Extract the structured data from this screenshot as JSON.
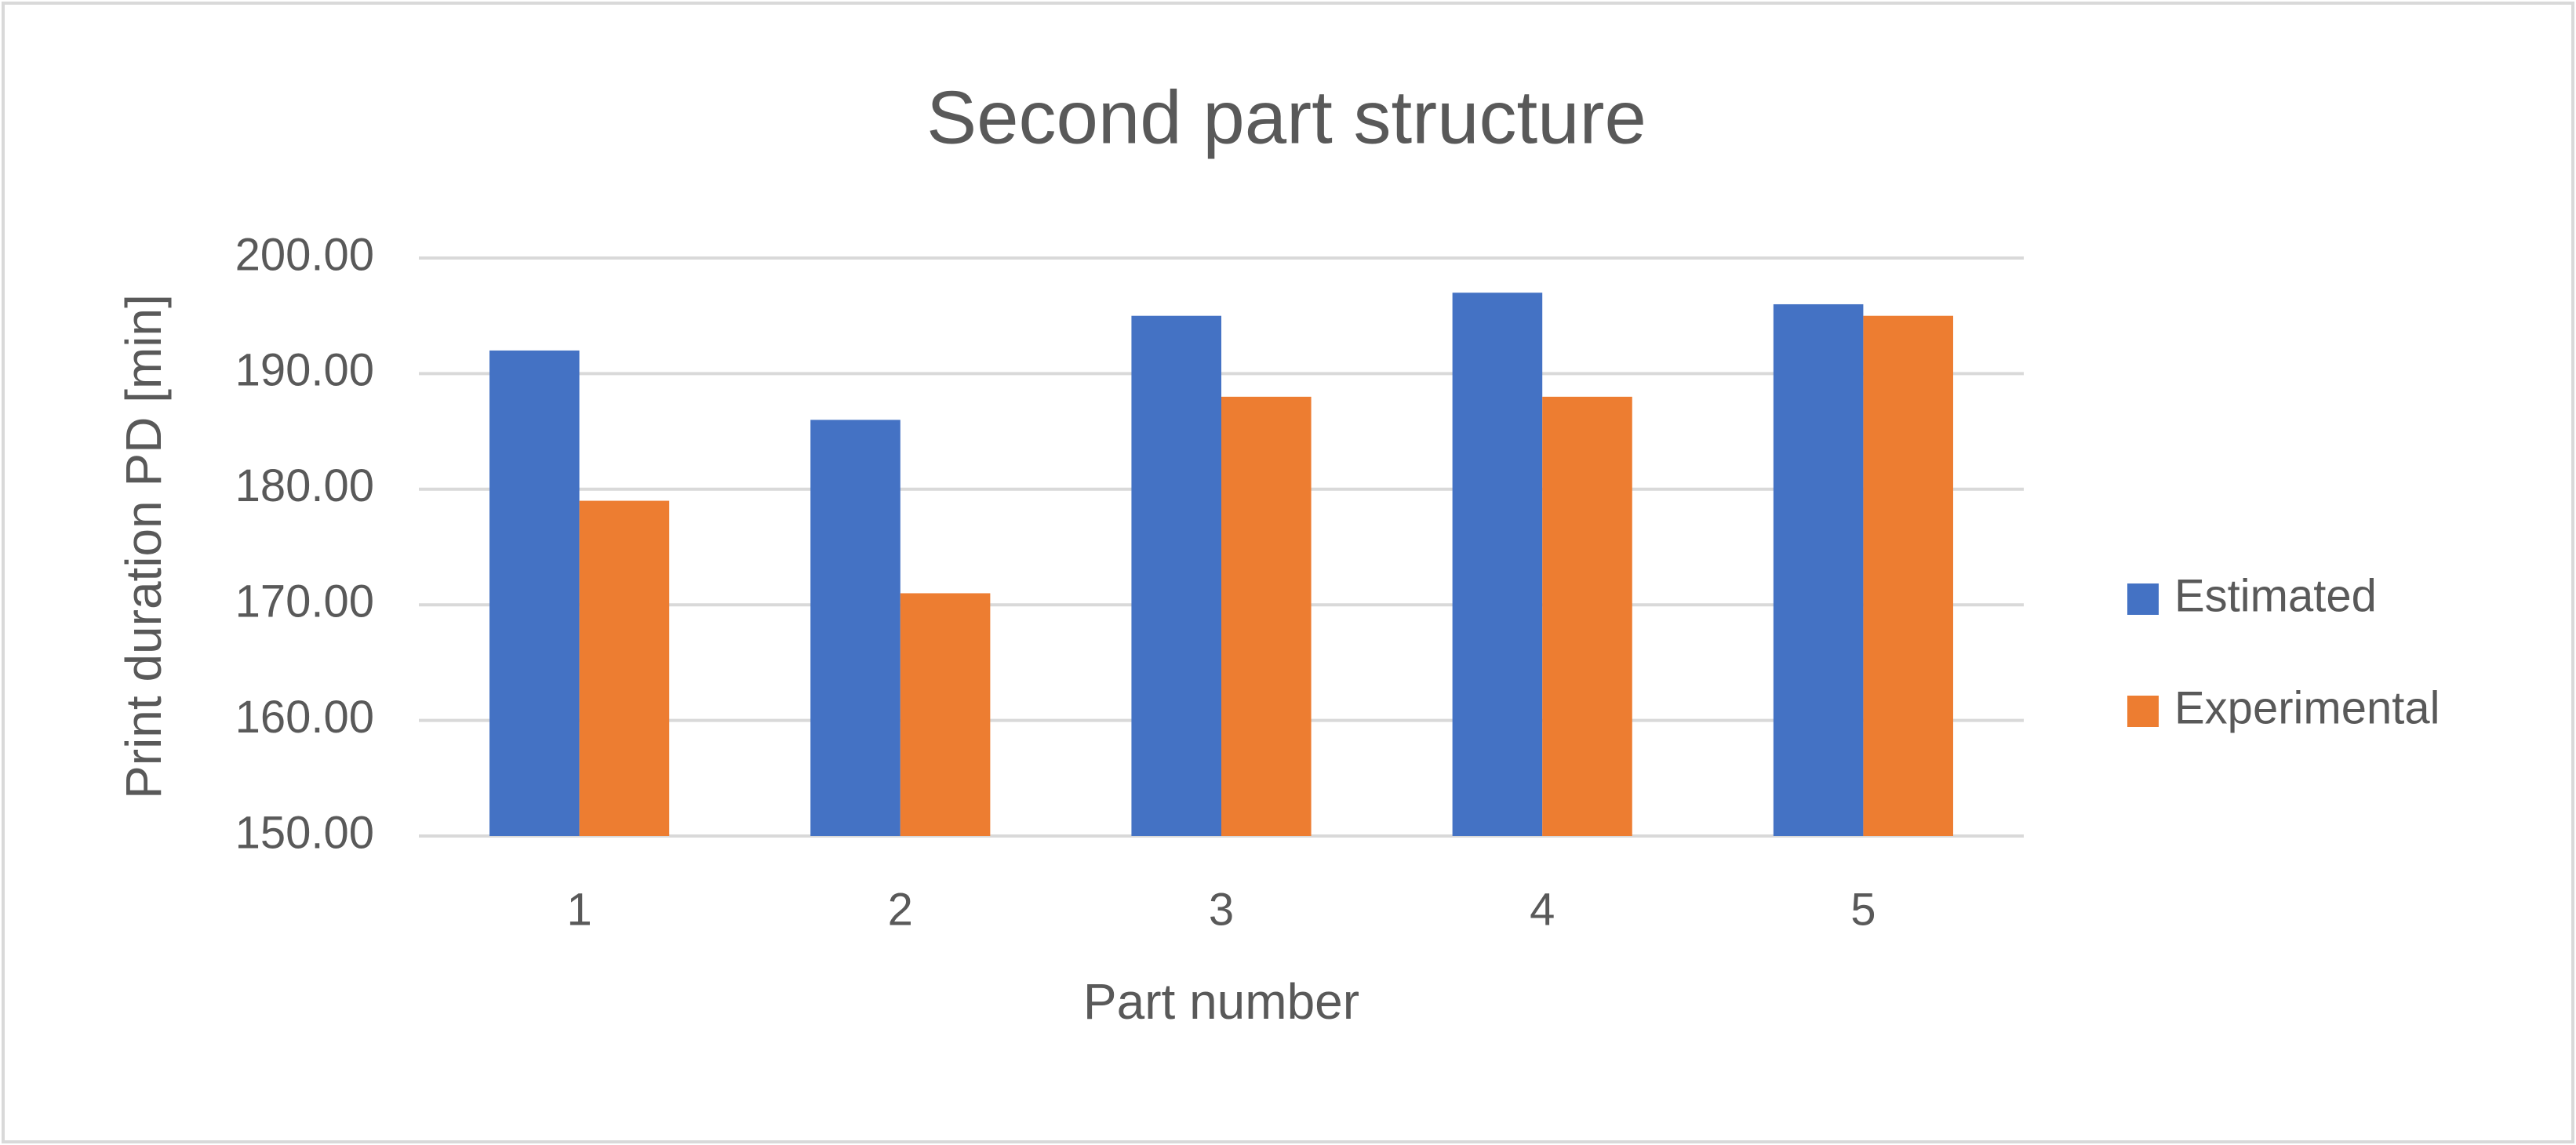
{
  "chart_data": {
    "type": "bar",
    "title": "Second part structure",
    "x_label": "Part number",
    "y_label": "Print duration PD [min]",
    "categories": [
      "1",
      "2",
      "3",
      "4",
      "5"
    ],
    "series": [
      {
        "name": "Estimated",
        "color": "#4472c4",
        "values": [
          192,
          186,
          195,
          197,
          196
        ]
      },
      {
        "name": "Experimental",
        "color": "#ed7d31",
        "values": [
          179,
          171,
          188,
          188,
          195
        ]
      }
    ],
    "ylim": [
      150,
      200
    ],
    "yticks": [
      {
        "value": 150,
        "label": "150.00"
      },
      {
        "value": 160,
        "label": "160.00"
      },
      {
        "value": 170,
        "label": "170.00"
      },
      {
        "value": 180,
        "label": "180.00"
      },
      {
        "value": 190,
        "label": "190.00"
      },
      {
        "value": 200,
        "label": "200.00"
      }
    ],
    "grid": true,
    "legend": "right"
  }
}
